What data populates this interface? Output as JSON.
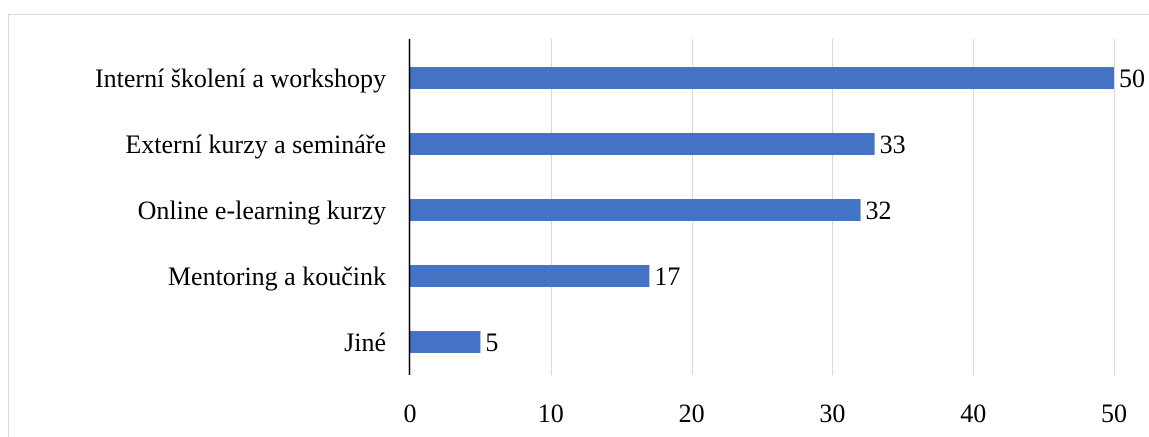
{
  "chart_data": {
    "type": "bar",
    "orientation": "horizontal",
    "categories": [
      "Interní školení a workshopy",
      "Externí kurzy a semináře",
      "Online e-learning kurzy",
      "Mentoring a koučink",
      "Jiné"
    ],
    "values": [
      50,
      33,
      32,
      17,
      5
    ],
    "data_labels": [
      "50",
      "33",
      "32",
      "17",
      "5"
    ],
    "xlim": [
      0,
      50
    ],
    "x_ticks": [
      0,
      10,
      20,
      30,
      40,
      50
    ],
    "x_tick_labels": [
      "0",
      "10",
      "20",
      "30",
      "40",
      "50"
    ],
    "grid": "vertical",
    "legend": "none",
    "bar_color": "#4472C4",
    "grid_color": "#D9D9D9",
    "axis_color": "#000000"
  }
}
